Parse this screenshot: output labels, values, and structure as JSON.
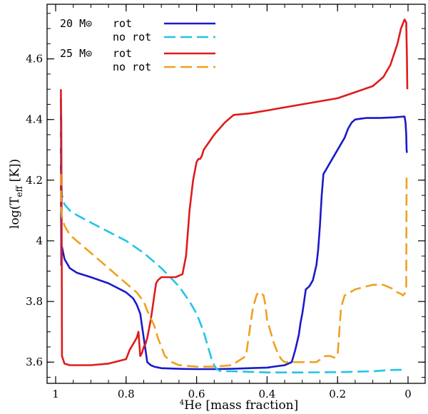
{
  "chart_data": {
    "type": "line",
    "xlabel": "⁴He  [mass fraction]",
    "ylabel": "log(T_eff [K])",
    "ylabel_parts": {
      "main": "log(T",
      "sub": "eff",
      "tail": " [K])"
    },
    "xlabel_parts": {
      "sup": "4",
      "main": "He  [mass fraction]"
    },
    "x_reversed": true,
    "xlim": [
      1.0,
      0.0
    ],
    "ylim": [
      3.53,
      4.78
    ],
    "x_ticks": [
      1,
      0.8,
      0.6,
      0.4,
      0.2,
      0
    ],
    "x_tick_labels": [
      "1",
      "0.8",
      "0.6",
      "0.4",
      "0.2",
      "0"
    ],
    "y_ticks": [
      3.6,
      3.8,
      4,
      4.2,
      4.4,
      4.6
    ],
    "y_tick_labels": [
      "3.6",
      "3.8",
      "4",
      "4.2",
      "4.4",
      "4.6"
    ],
    "legend": [
      {
        "group": "20 M⊙",
        "label": "rot",
        "color": "#1a1acc",
        "dash": "solid"
      },
      {
        "group": "",
        "label": "no rot",
        "color": "#22c4e6",
        "dash": "dashed"
      },
      {
        "group": "25 M⊙",
        "label": "rot",
        "color": "#e01b1b",
        "dash": "solid"
      },
      {
        "group": "",
        "label": "no rot",
        "color": "#f0a020",
        "dash": "dashed"
      }
    ],
    "series": [
      {
        "name": "20 Msun rot",
        "color": "#1a1acc",
        "dash": "solid",
        "x": [
          0.985,
          0.985,
          0.984,
          0.984,
          0.982,
          0.975,
          0.96,
          0.94,
          0.9,
          0.85,
          0.8,
          0.78,
          0.77,
          0.76,
          0.755,
          0.75,
          0.745,
          0.74,
          0.73,
          0.72,
          0.7,
          0.65,
          0.6,
          0.55,
          0.5,
          0.45,
          0.4,
          0.35,
          0.33,
          0.32,
          0.31,
          0.305,
          0.3,
          0.295,
          0.29,
          0.28,
          0.27,
          0.26,
          0.255,
          0.25,
          0.245,
          0.24,
          0.235,
          0.23,
          0.22,
          0.2,
          0.18,
          0.17,
          0.16,
          0.15,
          0.12,
          0.08,
          0.04,
          0.01,
          0.007,
          0.005,
          0.004,
          0.003
        ],
        "y": [
          4.47,
          4.2,
          4.0,
          3.92,
          3.98,
          3.94,
          3.91,
          3.895,
          3.88,
          3.86,
          3.83,
          3.81,
          3.79,
          3.76,
          3.72,
          3.68,
          3.64,
          3.6,
          3.59,
          3.585,
          3.58,
          3.578,
          3.577,
          3.577,
          3.578,
          3.58,
          3.582,
          3.59,
          3.6,
          3.64,
          3.69,
          3.73,
          3.76,
          3.8,
          3.84,
          3.85,
          3.87,
          3.92,
          3.97,
          4.05,
          4.15,
          4.22,
          4.23,
          4.24,
          4.26,
          4.3,
          4.34,
          4.37,
          4.39,
          4.4,
          4.405,
          4.405,
          4.407,
          4.41,
          4.39,
          4.35,
          4.3,
          4.29
        ]
      },
      {
        "name": "20 Msun no rot",
        "color": "#22c4e6",
        "dash": "dashed",
        "x": [
          0.985,
          0.985,
          0.984,
          0.982,
          0.975,
          0.96,
          0.94,
          0.9,
          0.85,
          0.8,
          0.75,
          0.7,
          0.65,
          0.62,
          0.6,
          0.58,
          0.57,
          0.56,
          0.555,
          0.55,
          0.545,
          0.54,
          0.535,
          0.53,
          0.5,
          0.45,
          0.4,
          0.35,
          0.3,
          0.2,
          0.1,
          0.05,
          0.01,
          0.005
        ],
        "y": [
          4.45,
          4.3,
          4.2,
          4.15,
          4.12,
          4.1,
          4.085,
          4.06,
          4.03,
          4.0,
          3.96,
          3.91,
          3.85,
          3.8,
          3.76,
          3.7,
          3.66,
          3.62,
          3.6,
          3.59,
          3.58,
          3.575,
          3.572,
          3.57,
          3.57,
          3.568,
          3.566,
          3.566,
          3.566,
          3.567,
          3.57,
          3.574,
          3.575,
          3.575
        ]
      },
      {
        "name": "25 Msun rot",
        "color": "#e01b1b",
        "dash": "solid",
        "x": [
          0.985,
          0.985,
          0.984,
          0.983,
          0.982,
          0.975,
          0.96,
          0.94,
          0.9,
          0.85,
          0.8,
          0.79,
          0.78,
          0.77,
          0.765,
          0.76,
          0.755,
          0.75,
          0.745,
          0.74,
          0.735,
          0.73,
          0.725,
          0.72,
          0.715,
          0.71,
          0.7,
          0.68,
          0.66,
          0.64,
          0.63,
          0.62,
          0.61,
          0.6,
          0.595,
          0.59,
          0.585,
          0.58,
          0.55,
          0.52,
          0.5,
          0.495,
          0.45,
          0.4,
          0.3,
          0.2,
          0.15,
          0.1,
          0.07,
          0.05,
          0.03,
          0.02,
          0.01,
          0.005,
          0.003,
          0.002
        ],
        "y": [
          4.5,
          4.45,
          4.4,
          4.1,
          3.62,
          3.595,
          3.59,
          3.59,
          3.59,
          3.595,
          3.61,
          3.64,
          3.66,
          3.68,
          3.7,
          3.62,
          3.63,
          3.65,
          3.66,
          3.68,
          3.71,
          3.74,
          3.78,
          3.82,
          3.86,
          3.87,
          3.88,
          3.88,
          3.88,
          3.89,
          3.95,
          4.1,
          4.2,
          4.26,
          4.27,
          4.27,
          4.28,
          4.3,
          4.35,
          4.39,
          4.41,
          4.415,
          4.42,
          4.43,
          4.45,
          4.47,
          4.49,
          4.51,
          4.54,
          4.58,
          4.65,
          4.7,
          4.73,
          4.72,
          4.6,
          4.5
        ]
      },
      {
        "name": "25 Msun no rot",
        "color": "#f0a020",
        "dash": "dashed",
        "x": [
          0.985,
          0.985,
          0.984,
          0.982,
          0.975,
          0.96,
          0.94,
          0.9,
          0.85,
          0.8,
          0.77,
          0.75,
          0.74,
          0.72,
          0.71,
          0.7,
          0.69,
          0.67,
          0.65,
          0.6,
          0.55,
          0.5,
          0.46,
          0.45,
          0.44,
          0.43,
          0.425,
          0.42,
          0.41,
          0.405,
          0.4,
          0.39,
          0.38,
          0.37,
          0.36,
          0.35,
          0.345,
          0.34,
          0.3,
          0.26,
          0.235,
          0.23,
          0.22,
          0.21,
          0.2,
          0.19,
          0.18,
          0.15,
          0.1,
          0.07,
          0.04,
          0.03,
          0.02,
          0.015,
          0.01,
          0.008,
          0.006,
          0.005,
          0.004
        ],
        "y": [
          4.22,
          4.15,
          4.1,
          4.08,
          4.05,
          4.02,
          4.0,
          3.96,
          3.91,
          3.86,
          3.83,
          3.8,
          3.77,
          3.72,
          3.68,
          3.65,
          3.62,
          3.6,
          3.59,
          3.585,
          3.585,
          3.59,
          3.62,
          3.7,
          3.78,
          3.82,
          3.83,
          3.83,
          3.82,
          3.79,
          3.74,
          3.7,
          3.66,
          3.63,
          3.61,
          3.6,
          3.6,
          3.6,
          3.6,
          3.6,
          3.62,
          3.62,
          3.62,
          3.615,
          3.62,
          3.78,
          3.82,
          3.84,
          3.855,
          3.855,
          3.84,
          3.83,
          3.825,
          3.82,
          3.825,
          3.83,
          3.84,
          3.85,
          4.22
        ]
      }
    ]
  }
}
